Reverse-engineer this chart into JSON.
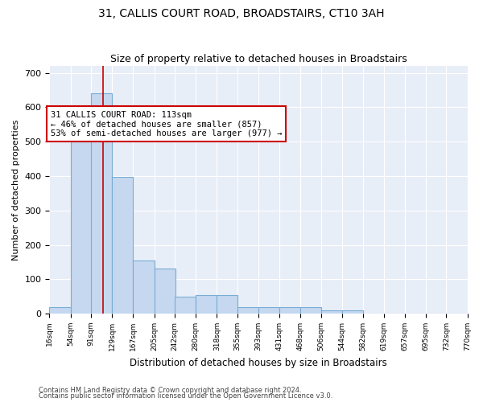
{
  "title": "31, CALLIS COURT ROAD, BROADSTAIRS, CT10 3AH",
  "subtitle": "Size of property relative to detached houses in Broadstairs",
  "xlabel": "Distribution of detached houses by size in Broadstairs",
  "ylabel": "Number of detached properties",
  "bar_color": "#c5d8f0",
  "bar_edge_color": "#7aadd4",
  "bg_color": "#e8eef8",
  "grid_color": "#ffffff",
  "property_size": 113,
  "property_line_color": "#cc0000",
  "annotation_text": "31 CALLIS COURT ROAD: 113sqm\n← 46% of detached houses are smaller (857)\n53% of semi-detached houses are larger (977) →",
  "annotation_box_color": "#ffffff",
  "annotation_box_edge": "#cc0000",
  "bins": [
    16,
    54,
    91,
    129,
    167,
    205,
    242,
    280,
    318,
    355,
    393,
    431,
    468,
    506,
    544,
    582,
    619,
    657,
    695,
    732,
    770
  ],
  "counts": [
    20,
    513,
    640,
    397,
    155,
    130,
    50,
    55,
    55,
    20,
    20,
    20,
    20,
    10,
    10,
    0,
    0,
    0,
    0,
    0
  ],
  "ylim": [
    0,
    720
  ],
  "yticks": [
    0,
    100,
    200,
    300,
    400,
    500,
    600,
    700
  ],
  "footer1": "Contains HM Land Registry data © Crown copyright and database right 2024.",
  "footer2": "Contains public sector information licensed under the Open Government Licence v3.0."
}
